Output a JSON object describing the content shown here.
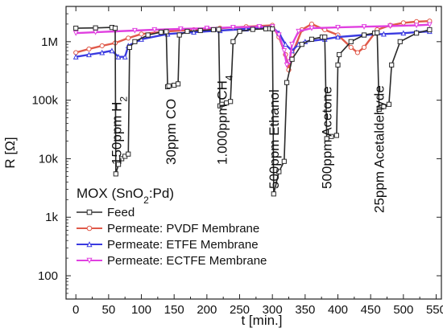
{
  "chart_data": {
    "type": "line",
    "xlabel": "t [min.]",
    "ylabel": "R [Ω]",
    "xlim": [
      -15,
      558
    ],
    "ylim": [
      40,
      4000000
    ],
    "yscale": "log",
    "x_ticks": [
      0,
      50,
      100,
      150,
      200,
      250,
      300,
      350,
      400,
      450,
      500,
      550
    ],
    "x_tick_labels": [
      "0",
      "50",
      "100",
      "150",
      "200",
      "250",
      "300",
      "350",
      "400",
      "450",
      "500",
      "550"
    ],
    "y_ticks": [
      100,
      1000,
      10000,
      100000,
      1000000
    ],
    "y_tick_labels": [
      "100",
      "1k",
      "10k",
      "100k",
      "1M"
    ],
    "legend": {
      "title": "MOX (SnO",
      "title_sub": "2",
      "title_tail": ":Pd)",
      "placement": "bottom-left"
    },
    "annotations": [
      {
        "text": "150ppm H",
        "sub": "2",
        "x": 62
      },
      {
        "text": "30ppm CO",
        "sub": "",
        "x": 145
      },
      {
        "text": "1.000ppm CH",
        "sub": "4",
        "x": 223
      },
      {
        "text": "500ppm Ethanol",
        "sub": "",
        "x": 302
      },
      {
        "text": "500ppm Acetone",
        "sub": "",
        "x": 383
      },
      {
        "text": "25ppm Acetaldehyde",
        "sub": "",
        "x": 463
      }
    ],
    "series": [
      {
        "name": "Feed",
        "color": "#2a2a2a",
        "marker": "square",
        "x": [
          0,
          30,
          55,
          60,
          61,
          65,
          70,
          75,
          80,
          82,
          90,
          110,
          130,
          138,
          140,
          142,
          150,
          156,
          158,
          170,
          190,
          210,
          218,
          220,
          223,
          230,
          236,
          240,
          250,
          270,
          290,
          296,
          300,
          302,
          310,
          318,
          322,
          330,
          345,
          360,
          376,
          380,
          383,
          390,
          398,
          400,
          402,
          420,
          440,
          456,
          460,
          463,
          470,
          478,
          482,
          495,
          520,
          540
        ],
        "y": [
          1700000,
          1720000,
          1750000,
          1700000,
          5500,
          8000,
          10000,
          11000,
          12000,
          800000,
          1000000,
          1300000,
          1450000,
          1480000,
          170000,
          175000,
          180000,
          190000,
          1300000,
          1500000,
          1550000,
          1600000,
          1620000,
          80000,
          85000,
          90000,
          95000,
          1000000,
          1500000,
          1620000,
          1660000,
          1670000,
          1650000,
          2500,
          6000,
          9000,
          200000,
          500000,
          900000,
          1100000,
          1200000,
          1200000,
          22000,
          24000,
          25000,
          400000,
          600000,
          1000000,
          1300000,
          1400000,
          1420000,
          70000,
          78000,
          85000,
          400000,
          1000000,
          1400000,
          1600000
        ]
      },
      {
        "name": "Permeate: PVDF Membrane",
        "color": "#e05a4a",
        "marker": "circle",
        "x": [
          0,
          20,
          40,
          60,
          80,
          100,
          140,
          180,
          220,
          260,
          300,
          310,
          320,
          325,
          330,
          345,
          360,
          380,
          400,
          420,
          430,
          440,
          460,
          480,
          500,
          520,
          540
        ],
        "y": [
          650000,
          750000,
          850000,
          950000,
          1150000,
          1350000,
          1500000,
          1600000,
          1700000,
          1800000,
          1900000,
          1200000,
          600000,
          330000,
          600000,
          1600000,
          2000000,
          1600000,
          1300000,
          800000,
          650000,
          800000,
          1600000,
          1900000,
          2100000,
          2200000,
          2250000
        ]
      },
      {
        "name": "Permeate: ETFE Membrane",
        "color": "#3a3ae0",
        "marker": "triangle",
        "x": [
          0,
          20,
          40,
          55,
          65,
          75,
          80,
          100,
          140,
          180,
          220,
          260,
          300,
          310,
          320,
          330,
          340,
          350,
          380,
          400,
          440,
          470,
          500,
          520,
          540
        ],
        "y": [
          550000,
          600000,
          650000,
          700000,
          550000,
          550000,
          850000,
          1100000,
          1350000,
          1450000,
          1550000,
          1650000,
          1750000,
          1400000,
          900000,
          700000,
          900000,
          1000000,
          1100000,
          1200000,
          1300000,
          1350000,
          1400000,
          1450000,
          1500000
        ]
      },
      {
        "name": "Permeate: ECTFE Membrane",
        "color": "#e040e0",
        "marker": "triangle-down",
        "x": [
          0,
          30,
          60,
          90,
          120,
          160,
          200,
          240,
          280,
          300,
          310,
          318,
          322,
          326,
          330,
          340,
          360,
          400,
          440,
          480,
          520,
          540
        ],
        "y": [
          1400000,
          1450000,
          1500000,
          1550000,
          1600000,
          1650000,
          1700000,
          1750000,
          1800000,
          1800000,
          1300000,
          700000,
          400000,
          450000,
          900000,
          1500000,
          1700000,
          1750000,
          1800000,
          1850000,
          1900000,
          1950000
        ]
      }
    ]
  }
}
